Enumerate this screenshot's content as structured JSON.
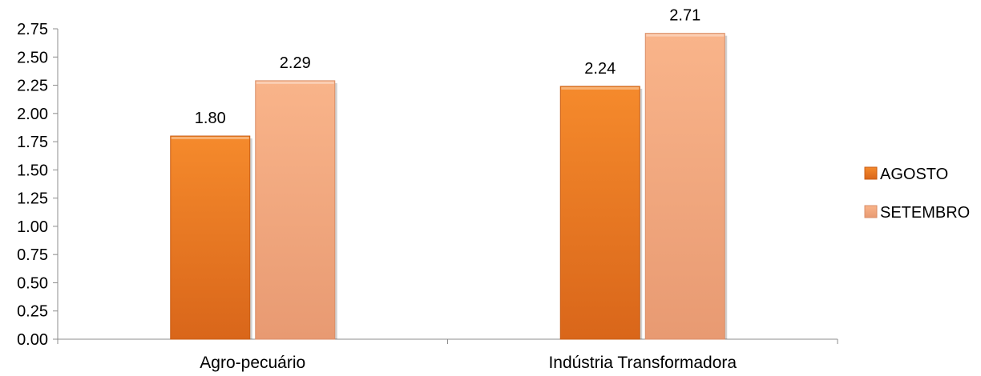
{
  "chart_data": {
    "type": "bar",
    "categories": [
      "Agro-pecuário",
      "Indústria Transformadora"
    ],
    "series": [
      {
        "name": "AGOSTO",
        "values": [
          1.8,
          2.24
        ],
        "color": "#E87722"
      },
      {
        "name": "SETEMBRO",
        "values": [
          2.29,
          2.71
        ],
        "color": "#F4A77E"
      }
    ],
    "data_labels": [
      [
        "1.80",
        "2.24"
      ],
      [
        "2.29",
        "2.71"
      ]
    ],
    "y_ticks": [
      "0.00",
      "0.25",
      "0.50",
      "0.75",
      "1.00",
      "1.25",
      "1.50",
      "1.75",
      "2.00",
      "2.25",
      "2.50",
      "2.75"
    ],
    "ylim": [
      0,
      2.75
    ],
    "title": "",
    "xlabel": "",
    "ylabel": "",
    "grid": false,
    "legend": "right"
  }
}
